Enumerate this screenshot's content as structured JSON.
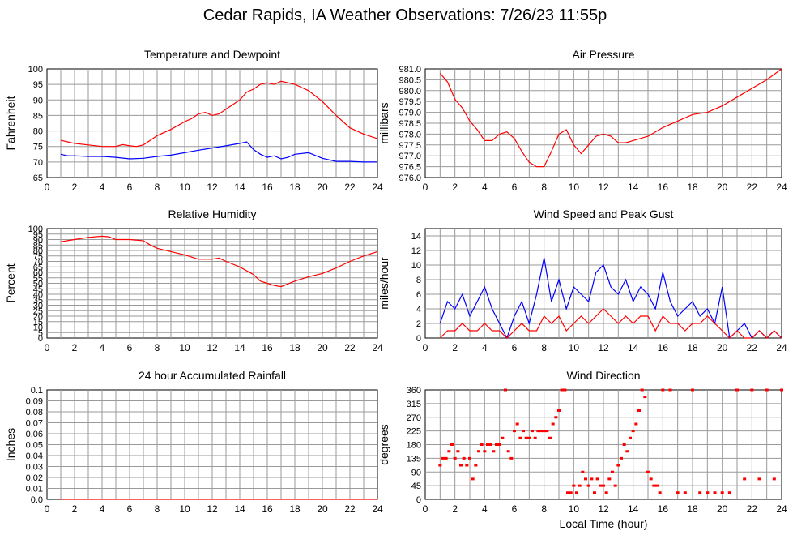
{
  "page": {
    "title": "Cedar Rapids, IA Weather Observations: 7/26/23 11:55p"
  },
  "chart_data": [
    {
      "type": "line",
      "title": "Temperature and Dewpoint",
      "xlabel": "",
      "ylabel": "Fahrenheit",
      "xlim": [
        0,
        24
      ],
      "ylim": [
        65,
        100
      ],
      "xticks": [
        "2",
        "4",
        "6",
        "8",
        "10",
        "12",
        "14",
        "16",
        "18",
        "20",
        "22",
        "24"
      ],
      "yticks": [
        "65",
        "70",
        "75",
        "80",
        "85",
        "90",
        "95",
        "100"
      ],
      "grid": true,
      "series": [
        {
          "color": "#ff0000",
          "x": [
            1,
            1.5,
            2,
            3,
            4,
            5,
            5.5,
            6,
            6.5,
            7,
            7.5,
            8,
            9,
            10,
            10.5,
            11,
            11.5,
            12,
            12.5,
            13,
            13.5,
            14,
            14.5,
            15,
            15.5,
            16,
            16.5,
            17,
            17.5,
            18,
            18.5,
            19,
            20,
            21,
            22,
            23,
            24
          ],
          "y": [
            77,
            76.5,
            76,
            75.5,
            75,
            75,
            75.6,
            75.2,
            75,
            75.5,
            77,
            78.5,
            80.5,
            83,
            84,
            85.5,
            86,
            85,
            85.5,
            87,
            88.5,
            90,
            92.5,
            93.5,
            95,
            95.5,
            95,
            96,
            95.5,
            95,
            94,
            93,
            89.5,
            85,
            81,
            79,
            77.5
          ]
        },
        {
          "color": "#0000ff",
          "x": [
            1,
            1.5,
            2,
            3,
            4,
            5,
            6,
            7,
            8,
            9,
            10,
            11,
            12,
            13,
            14,
            14.5,
            15,
            15.5,
            16,
            16.5,
            17,
            17.5,
            18,
            19,
            20,
            21,
            22,
            23,
            24
          ],
          "y": [
            72.5,
            72,
            72,
            71.8,
            71.8,
            71.5,
            71,
            71.2,
            71.8,
            72.2,
            73,
            73.8,
            74.5,
            75.2,
            76,
            76.5,
            74,
            72.5,
            71.5,
            72,
            71,
            71.5,
            72.5,
            73,
            71.2,
            70.2,
            70.2,
            70,
            70
          ]
        }
      ]
    },
    {
      "type": "line",
      "title": "Air Pressure",
      "xlabel": "",
      "ylabel": "millibars",
      "xlim": [
        0,
        24
      ],
      "ylim": [
        976.0,
        981.0
      ],
      "xticks": [
        "2",
        "4",
        "6",
        "8",
        "10",
        "12",
        "14",
        "16",
        "18",
        "20",
        "22",
        "24"
      ],
      "yticks": [
        "976.0",
        "976.5",
        "977.0",
        "977.5",
        "978.0",
        "978.5",
        "979.0",
        "979.5",
        "980.0",
        "980.5",
        "981.0"
      ],
      "grid": true,
      "series": [
        {
          "color": "#ff0000",
          "x": [
            1,
            1.5,
            2,
            2.5,
            3,
            3.5,
            4,
            4.5,
            5,
            5.5,
            6,
            6.5,
            7,
            7.5,
            8,
            8.5,
            9,
            9.5,
            10,
            10.5,
            11,
            11.5,
            12,
            12.5,
            13,
            13.5,
            14,
            15,
            16,
            17,
            18,
            19,
            20,
            21,
            22,
            23,
            24
          ],
          "y": [
            980.8,
            980.4,
            979.6,
            979.2,
            978.6,
            978.2,
            977.7,
            977.7,
            978.0,
            978.1,
            977.8,
            977.2,
            976.7,
            976.5,
            976.5,
            977.2,
            978.0,
            978.2,
            977.5,
            977.1,
            977.5,
            977.9,
            978.0,
            977.9,
            977.6,
            977.6,
            977.7,
            977.9,
            978.3,
            978.6,
            978.9,
            979.0,
            979.3,
            979.7,
            980.1,
            980.5,
            981.0
          ]
        }
      ]
    },
    {
      "type": "line",
      "title": "Relative Humidity",
      "xlabel": "",
      "ylabel": "Percent",
      "xlim": [
        0,
        24
      ],
      "ylim": [
        0,
        100
      ],
      "xticks": [
        "2",
        "4",
        "6",
        "8",
        "10",
        "12",
        "14",
        "16",
        "18",
        "20",
        "22",
        "24"
      ],
      "yticks": [
        "0",
        "5",
        "10",
        "15",
        "20",
        "25",
        "30",
        "35",
        "40",
        "45",
        "50",
        "55",
        "60",
        "65",
        "70",
        "75",
        "80",
        "85",
        "90",
        "95",
        "100"
      ],
      "grid": true,
      "series": [
        {
          "color": "#ff0000",
          "x": [
            1,
            2,
            3,
            4,
            4.5,
            5,
            6,
            7,
            7.5,
            8,
            9,
            10,
            11,
            12,
            12.5,
            13,
            14,
            15,
            15.5,
            16,
            16.5,
            17,
            18,
            19,
            20,
            21,
            22,
            23,
            24
          ],
          "y": [
            88,
            90,
            92,
            93,
            92.5,
            90,
            90,
            89,
            85,
            82,
            79,
            76,
            72,
            72,
            73,
            70,
            65,
            58,
            52,
            50,
            48,
            47,
            52,
            56,
            59,
            64,
            70,
            75,
            79
          ]
        }
      ]
    },
    {
      "type": "line",
      "title": "Wind Speed and Peak Gust",
      "xlabel": "",
      "ylabel": "miles/hour",
      "xlim": [
        0,
        24
      ],
      "ylim": [
        0,
        15
      ],
      "xticks": [
        "2",
        "4",
        "6",
        "8",
        "10",
        "12",
        "14",
        "16",
        "18",
        "20",
        "22",
        "24"
      ],
      "yticks": [
        "0",
        "2",
        "4",
        "6",
        "8",
        "10",
        "12",
        "14"
      ],
      "grid": true,
      "series": [
        {
          "color": "#0000ff",
          "x": [
            1,
            1.5,
            2,
            2.5,
            3,
            3.5,
            4,
            4.5,
            5,
            5.5,
            6,
            6.5,
            7,
            7.5,
            8,
            8.5,
            9,
            9.5,
            10,
            10.5,
            11,
            11.5,
            12,
            12.5,
            13,
            13.5,
            14,
            14.5,
            15,
            15.5,
            16,
            16.5,
            17,
            17.5,
            18,
            18.5,
            19,
            19.5,
            20,
            20.5,
            21,
            21.5,
            22,
            22.5,
            23,
            23.5,
            24
          ],
          "y": [
            2,
            5,
            4,
            6,
            3,
            5,
            7,
            4,
            2,
            0,
            3,
            5,
            2,
            6,
            11,
            5,
            8,
            4,
            7,
            6,
            5,
            9,
            10,
            7,
            6,
            8,
            5,
            7,
            6,
            4,
            9,
            5,
            3,
            4,
            5,
            3,
            4,
            2,
            7,
            0,
            1,
            2,
            0,
            1,
            0,
            1,
            0
          ]
        },
        {
          "color": "#ff0000",
          "x": [
            1,
            1.5,
            2,
            2.5,
            3,
            3.5,
            4,
            4.5,
            5,
            5.5,
            6,
            6.5,
            7,
            7.5,
            8,
            8.5,
            9,
            9.5,
            10,
            10.5,
            11,
            11.5,
            12,
            12.5,
            13,
            13.5,
            14,
            14.5,
            15,
            15.5,
            16,
            16.5,
            17,
            17.5,
            18,
            18.5,
            19,
            19.5,
            20,
            20.5,
            21,
            21.5,
            22,
            22.5,
            23,
            23.5,
            24
          ],
          "y": [
            0,
            1,
            1,
            2,
            1,
            1,
            2,
            1,
            1,
            0,
            1,
            2,
            1,
            1,
            3,
            2,
            3,
            1,
            2,
            3,
            2,
            3,
            4,
            3,
            2,
            3,
            2,
            3,
            3,
            1,
            3,
            2,
            2,
            1,
            2,
            2,
            3,
            2,
            1,
            0,
            1,
            0,
            0,
            1,
            0,
            1,
            0
          ]
        }
      ]
    },
    {
      "type": "line",
      "title": "24 hour Accumulated Rainfall",
      "xlabel": "",
      "ylabel": "Inches",
      "xlim": [
        0,
        24
      ],
      "ylim": [
        0,
        0.1
      ],
      "xticks": [
        "2",
        "4",
        "6",
        "8",
        "10",
        "12",
        "14",
        "16",
        "18",
        "20",
        "22",
        "24"
      ],
      "yticks": [
        "0.0",
        "0.01",
        "0.02",
        "0.03",
        "0.04",
        "0.05",
        "0.06",
        "0.07",
        "0.08",
        "0.09",
        "0.1"
      ],
      "grid": true,
      "series": [
        {
          "color": "#ff0000",
          "x": [
            1,
            24
          ],
          "y": [
            0,
            0
          ]
        }
      ]
    },
    {
      "type": "scatter",
      "title": "Wind Direction",
      "xlabel": "Local Time (hour)",
      "ylabel": "degrees",
      "xlim": [
        0,
        24
      ],
      "ylim": [
        0,
        360
      ],
      "xticks": [
        "2",
        "4",
        "6",
        "8",
        "10",
        "12",
        "14",
        "16",
        "18",
        "20",
        "22",
        "24"
      ],
      "yticks": [
        "0",
        "45",
        "90",
        "135",
        "180",
        "225",
        "270",
        "315",
        "360"
      ],
      "grid": true,
      "series": [
        {
          "color": "#ff0000",
          "x": [
            1.0,
            1.2,
            1.4,
            1.6,
            1.8,
            2.0,
            2.2,
            2.4,
            2.6,
            2.8,
            3.0,
            3.2,
            3.4,
            3.6,
            3.8,
            4.0,
            4.2,
            4.4,
            4.6,
            4.8,
            5.0,
            5.2,
            5.4,
            5.6,
            5.8,
            6.0,
            6.2,
            6.4,
            6.6,
            6.8,
            7.0,
            7.2,
            7.4,
            7.6,
            7.8,
            8.0,
            8.2,
            8.4,
            8.6,
            8.8,
            9.0,
            9.2,
            9.4,
            9.6,
            9.8,
            10.0,
            10.2,
            10.4,
            10.6,
            10.8,
            11.0,
            11.2,
            11.4,
            11.6,
            11.8,
            12.0,
            12.2,
            12.4,
            12.6,
            12.8,
            13.0,
            13.2,
            13.4,
            13.6,
            13.8,
            14.0,
            14.2,
            14.4,
            14.6,
            14.8,
            15.0,
            15.2,
            15.4,
            15.6,
            15.8,
            16.0,
            16.5,
            17.0,
            17.5,
            18.0,
            18.5,
            19.0,
            19.5,
            20.0,
            20.5,
            21.0,
            21.5,
            22.0,
            22.5,
            23.0,
            23.5,
            24.0
          ],
          "y": [
            112,
            135,
            135,
            158,
            180,
            135,
            158,
            112,
            135,
            112,
            135,
            67,
            112,
            158,
            180,
            158,
            180,
            180,
            158,
            180,
            180,
            202,
            360,
            158,
            135,
            225,
            248,
            202,
            225,
            202,
            202,
            225,
            202,
            225,
            225,
            225,
            225,
            202,
            248,
            270,
            292,
            360,
            360,
            22,
            22,
            45,
            22,
            45,
            90,
            67,
            45,
            67,
            22,
            67,
            45,
            45,
            22,
            67,
            90,
            45,
            112,
            135,
            180,
            158,
            202,
            225,
            248,
            292,
            360,
            337,
            90,
            67,
            45,
            45,
            22,
            360,
            360,
            22,
            22,
            360,
            22,
            22,
            22,
            22,
            22,
            360,
            67,
            360,
            67,
            360,
            67,
            360
          ]
        }
      ]
    }
  ]
}
